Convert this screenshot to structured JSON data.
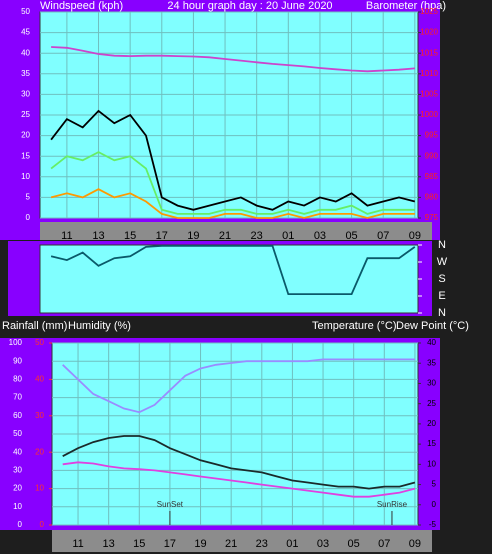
{
  "chart_data": [
    {
      "type": "line",
      "title": "24 hour graph day : 20 June 2020",
      "y_label": "Windspeed (kph)",
      "y2_label": "Barometer (hpa)",
      "x": [
        10,
        11,
        12,
        13,
        14,
        15,
        16,
        17,
        18,
        19,
        20,
        21,
        22,
        23,
        24,
        25,
        26,
        27,
        28,
        29,
        30,
        31,
        32,
        33
      ],
      "xlim": [
        9.3,
        33.2
      ],
      "xticks": [
        11,
        13,
        15,
        17,
        19,
        21,
        23,
        {
          "value": 25,
          "label": "01"
        },
        {
          "value": 27,
          "label": "03"
        },
        {
          "value": 29,
          "label": "05"
        },
        {
          "value": 31,
          "label": "07"
        },
        {
          "value": 33,
          "label": "09"
        }
      ],
      "ylim": [
        0,
        50
      ],
      "yticks": [
        0,
        5,
        10,
        15,
        20,
        25,
        30,
        35,
        40,
        45,
        50
      ],
      "y2lim": [
        975,
        1025
      ],
      "y2ticks": [
        975,
        980,
        985,
        990,
        995,
        1000,
        1005,
        1010,
        1015,
        1020,
        1025
      ],
      "grid": true,
      "background": "#80ffff",
      "series": [
        {
          "color": "#000000",
          "values": [
            19,
            24,
            22,
            26,
            23,
            25,
            20,
            5,
            3,
            2,
            3,
            4,
            5,
            3,
            2,
            4,
            3,
            5,
            4,
            6,
            3,
            4,
            5,
            4
          ]
        },
        {
          "color": "#66ee66",
          "values": [
            12,
            15,
            14,
            16,
            14,
            15,
            12,
            2,
            1,
            1,
            1,
            2,
            2,
            1,
            1,
            2,
            1,
            2,
            2,
            3,
            1,
            2,
            2,
            2
          ]
        },
        {
          "color": "#ff9900",
          "values": [
            5,
            6,
            5,
            7,
            5,
            6,
            4,
            1,
            0,
            0,
            0,
            1,
            1,
            0,
            0,
            1,
            0,
            1,
            1,
            1,
            0,
            1,
            1,
            1
          ]
        },
        {
          "color": "#cc44cc",
          "axis": "y2",
          "values": [
            1016.5,
            1016.3,
            1015.6,
            1014.8,
            1014.4,
            1014.3,
            1014.4,
            1014.4,
            1014.3,
            1014.2,
            1014.0,
            1013.6,
            1013.2,
            1012.8,
            1012.4,
            1012.1,
            1011.8,
            1011.4,
            1011.1,
            1010.8,
            1010.6,
            1010.8,
            1011.0,
            1011.3
          ]
        }
      ]
    },
    {
      "type": "line",
      "x": [
        10,
        11,
        12,
        13,
        14,
        15,
        16,
        17,
        18,
        19,
        20,
        21,
        22,
        23,
        24,
        25,
        26,
        27,
        28,
        29,
        30,
        31,
        32,
        33
      ],
      "xlim": [
        9.3,
        33.2
      ],
      "ylim": [
        0,
        360
      ],
      "yticks": [
        {
          "value": 360,
          "label": "N"
        },
        {
          "value": 270,
          "label": "W"
        },
        {
          "value": 180,
          "label": "S"
        },
        {
          "value": 90,
          "label": "E"
        },
        {
          "value": 0,
          "label": "N"
        }
      ],
      "background": "#80ffff",
      "series": [
        {
          "color": "#0a5a6a",
          "values": [
            300,
            280,
            320,
            250,
            290,
            300,
            350,
            355,
            355,
            355,
            355,
            355,
            355,
            355,
            355,
            100,
            100,
            100,
            100,
            100,
            290,
            290,
            290,
            350
          ]
        }
      ]
    },
    {
      "type": "line",
      "y_label": "Humidity (%)",
      "rain_label": "Rainfall (mm)",
      "y2_label": "Temperature (°C)",
      "y3_label": "Dew Point (°C)",
      "x": [
        10,
        11,
        12,
        13,
        14,
        15,
        16,
        17,
        18,
        19,
        20,
        21,
        22,
        23,
        24,
        25,
        26,
        27,
        28,
        29,
        30,
        31,
        32,
        33
      ],
      "xlim": [
        9.3,
        33.2
      ],
      "xticks": [
        11,
        13,
        15,
        17,
        19,
        21,
        23,
        {
          "value": 25,
          "label": "01"
        },
        {
          "value": 27,
          "label": "03"
        },
        {
          "value": 29,
          "label": "05"
        },
        {
          "value": 31,
          "label": "07"
        },
        {
          "value": 33,
          "label": "09"
        }
      ],
      "ylim": [
        0,
        100
      ],
      "yticks": [
        0,
        10,
        20,
        30,
        40,
        50,
        60,
        70,
        80,
        90,
        100
      ],
      "rain_lim": [
        0,
        50
      ],
      "rain_ticks": [
        0,
        10,
        20,
        30,
        40,
        50
      ],
      "y2lim": [
        -5,
        40
      ],
      "y2ticks": [
        -5,
        0,
        5,
        10,
        15,
        20,
        25,
        30,
        35,
        40
      ],
      "grid": true,
      "background": "#80ffff",
      "annotations": [
        {
          "text": "SunSet",
          "x": 17
        },
        {
          "text": "SunRise",
          "x": 31.5
        }
      ],
      "series": [
        {
          "color": "#9a8cff",
          "values": [
            88,
            80,
            72,
            68,
            64,
            62,
            66,
            74,
            82,
            86,
            88,
            89,
            90,
            90,
            90,
            90,
            90,
            91,
            91,
            91,
            91,
            91,
            91,
            91
          ]
        },
        {
          "color": "#1a2a2a",
          "axis": "y2",
          "values": [
            12,
            14,
            15.5,
            16.5,
            17,
            17,
            16,
            14,
            12.5,
            11,
            10,
            9,
            8.5,
            8,
            7,
            6,
            5.5,
            5,
            4.5,
            4.5,
            4,
            4.5,
            4.5,
            5.5
          ]
        },
        {
          "color": "#e040e0",
          "axis": "y2",
          "values": [
            10,
            10.5,
            10.2,
            9.5,
            9,
            8.8,
            8.5,
            8,
            7.5,
            7,
            6.5,
            6,
            5.5,
            5,
            4.5,
            4,
            3.5,
            3,
            2.5,
            2,
            2,
            2.5,
            3,
            4
          ]
        }
      ]
    }
  ]
}
